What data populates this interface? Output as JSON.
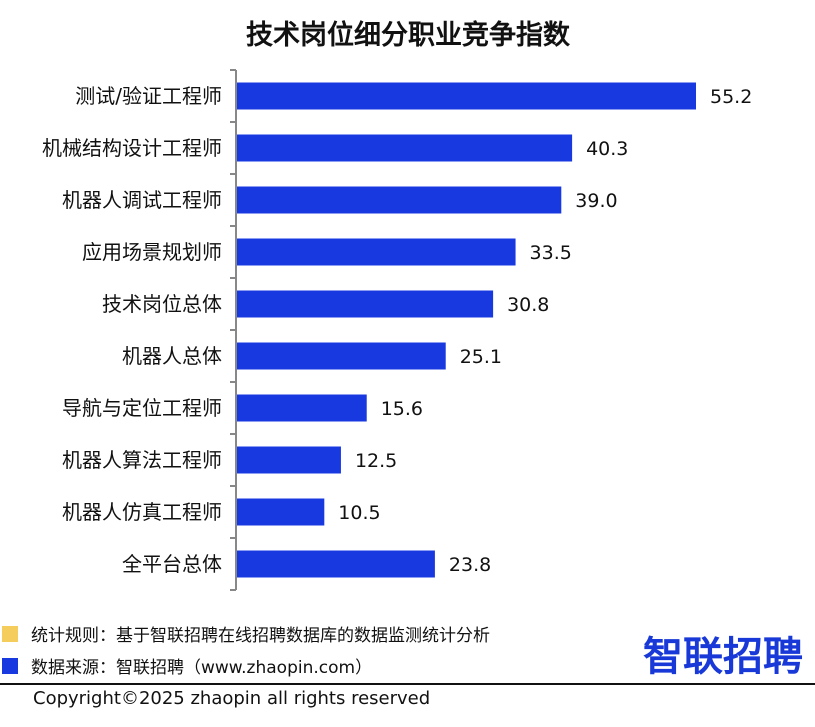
{
  "chart_data": {
    "type": "bar",
    "orientation": "horizontal",
    "title": "技术岗位细分职业竞争指数",
    "categories": [
      "测试/验证工程师",
      "机械结构设计工程师",
      "机器人调试工程师",
      "应用场景规划师",
      "技术岗位总体",
      "机器人总体",
      "导航与定位工程师",
      "机器人算法工程师",
      "机器人仿真工程师",
      "全平台总体"
    ],
    "values": [
      55.2,
      40.3,
      39.0,
      33.5,
      30.8,
      25.1,
      15.6,
      12.5,
      10.5,
      23.8
    ],
    "value_labels": [
      "55.2",
      "40.3",
      "39.0",
      "33.5",
      "30.8",
      "25.1",
      "15.6",
      "12.5",
      "10.5",
      "23.8"
    ],
    "xlim": [
      0,
      55.2
    ],
    "grid": false,
    "bar_color": "#1839e0"
  },
  "notes": [
    {
      "text": "统计规则：基于智联招聘在线招聘数据库的数据监测统计分析",
      "color": "#f5cd5c"
    },
    {
      "text": "数据来源：智联招聘（www.zhaopin.com）",
      "color": "#1839e0"
    }
  ],
  "logo_text": "智联招聘",
  "logo_color": "#1839d8",
  "copyright": "Copyright©2025 zhaopin all rights reserved"
}
